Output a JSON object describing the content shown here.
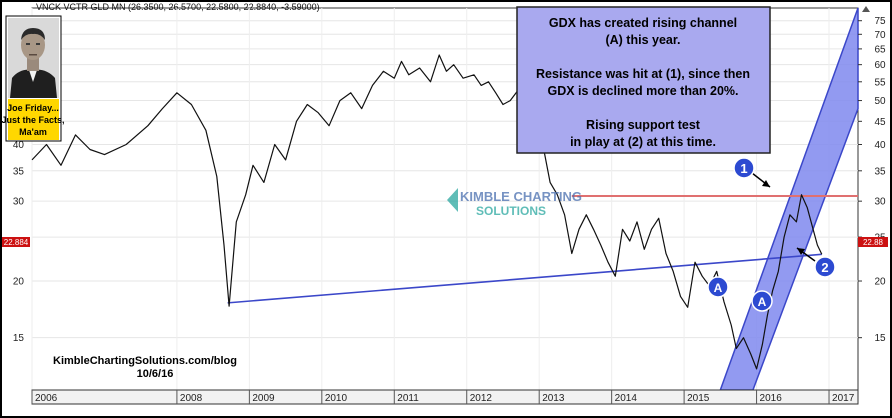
{
  "header_text": "VNCK VCTR GLD MN (26.3500, 26.5700, 22.5800, 22.8840, -3.59000)",
  "photo_caption": [
    "Joe Friday...",
    "Just the Facts,",
    "Ma'am"
  ],
  "annotation_box": [
    "GDX has created rising channel",
    "(A) this year.",
    "",
    "Resistance was hit at (1), since then",
    "GDX is declined more than 20%.",
    "",
    "Rising support test",
    "in play at (2) at this time."
  ],
  "watermark": {
    "line1": "KIMBLE CHARTING",
    "line2": "SOLUTIONS"
  },
  "credit": {
    "site": "KimbleChartingSolutions.com/blog",
    "date": "10/6/16"
  },
  "markers": {
    "one": "1",
    "two": "2",
    "channel": "A"
  },
  "price_labels": {
    "left": "22.884",
    "right": "22.88"
  },
  "colors": {
    "price_line": "#111111",
    "support_line": "#3b47c9",
    "resistance_line": "#e07070",
    "channel_fill": "#7f88ee",
    "annotation_bg": "#a9a9ef",
    "marker_bg": "#2c4ad1",
    "caption_bg": "#ffd700",
    "price_label_bg": "#cc1111"
  },
  "chart_data": {
    "type": "line",
    "scale": "log",
    "x_ticks": [
      "2006",
      "2008",
      "2009",
      "2010",
      "2011",
      "2012",
      "2013",
      "2014",
      "2015",
      "2016",
      "2017"
    ],
    "y_ticks": [
      75,
      70,
      65,
      60,
      55,
      50,
      45,
      40,
      35,
      30,
      25,
      20,
      15
    ],
    "ylim": [
      11.5,
      80
    ],
    "xlim": [
      2006.0,
      2017.4
    ],
    "series": [
      {
        "values": [
          [
            2006.0,
            37
          ],
          [
            2006.2,
            40
          ],
          [
            2006.4,
            36
          ],
          [
            2006.6,
            42
          ],
          [
            2006.8,
            39
          ],
          [
            2007.0,
            38
          ],
          [
            2007.3,
            40
          ],
          [
            2007.6,
            44
          ],
          [
            2007.8,
            48
          ],
          [
            2008.0,
            52
          ],
          [
            2008.2,
            49
          ],
          [
            2008.4,
            43
          ],
          [
            2008.55,
            34
          ],
          [
            2008.65,
            24
          ],
          [
            2008.72,
            17.6
          ],
          [
            2008.82,
            27
          ],
          [
            2008.95,
            31
          ],
          [
            2009.05,
            36
          ],
          [
            2009.2,
            33
          ],
          [
            2009.35,
            40
          ],
          [
            2009.5,
            37
          ],
          [
            2009.65,
            45
          ],
          [
            2009.8,
            49
          ],
          [
            2009.95,
            47
          ],
          [
            2010.1,
            44
          ],
          [
            2010.25,
            50
          ],
          [
            2010.4,
            52
          ],
          [
            2010.55,
            48
          ],
          [
            2010.7,
            54
          ],
          [
            2010.85,
            58
          ],
          [
            2011.0,
            56
          ],
          [
            2011.1,
            61
          ],
          [
            2011.2,
            57
          ],
          [
            2011.35,
            59
          ],
          [
            2011.5,
            55
          ],
          [
            2011.62,
            63
          ],
          [
            2011.72,
            58
          ],
          [
            2011.82,
            60
          ],
          [
            2011.95,
            56
          ],
          [
            2012.1,
            57
          ],
          [
            2012.2,
            54
          ],
          [
            2012.3,
            55
          ],
          [
            2012.4,
            52
          ],
          [
            2012.5,
            49
          ],
          [
            2012.6,
            50
          ],
          [
            2012.72,
            53
          ],
          [
            2012.85,
            49
          ],
          [
            2012.95,
            44
          ],
          [
            2013.05,
            40
          ],
          [
            2013.15,
            33
          ],
          [
            2013.25,
            31
          ],
          [
            2013.35,
            28
          ],
          [
            2013.45,
            23
          ],
          [
            2013.55,
            26
          ],
          [
            2013.65,
            28
          ],
          [
            2013.75,
            26
          ],
          [
            2013.85,
            24
          ],
          [
            2013.95,
            22
          ],
          [
            2014.05,
            20.5
          ],
          [
            2014.15,
            26
          ],
          [
            2014.25,
            24.5
          ],
          [
            2014.35,
            27
          ],
          [
            2014.45,
            23.5
          ],
          [
            2014.55,
            26
          ],
          [
            2014.65,
            27.5
          ],
          [
            2014.75,
            23
          ],
          [
            2014.85,
            21
          ],
          [
            2014.95,
            18.5
          ],
          [
            2015.05,
            17.5
          ],
          [
            2015.15,
            22
          ],
          [
            2015.25,
            20.5
          ],
          [
            2015.35,
            19.5
          ],
          [
            2015.45,
            21
          ],
          [
            2015.55,
            18
          ],
          [
            2015.65,
            16
          ],
          [
            2015.72,
            14.2
          ],
          [
            2015.82,
            15
          ],
          [
            2015.92,
            13.8
          ],
          [
            2016.0,
            12.8
          ],
          [
            2016.08,
            14.5
          ],
          [
            2016.15,
            16.8
          ],
          [
            2016.22,
            19
          ],
          [
            2016.3,
            21
          ],
          [
            2016.38,
            25
          ],
          [
            2016.46,
            28
          ],
          [
            2016.55,
            27
          ],
          [
            2016.62,
            31
          ],
          [
            2016.7,
            29
          ],
          [
            2016.78,
            26
          ],
          [
            2016.84,
            24
          ],
          [
            2016.9,
            22.9
          ]
        ]
      }
    ],
    "support_line": [
      [
        2008.7,
        17.9
      ],
      [
        2016.9,
        22.9
      ]
    ],
    "resistance_line": [
      [
        2013.45,
        30.8
      ],
      [
        2017.4,
        30.8
      ]
    ]
  }
}
